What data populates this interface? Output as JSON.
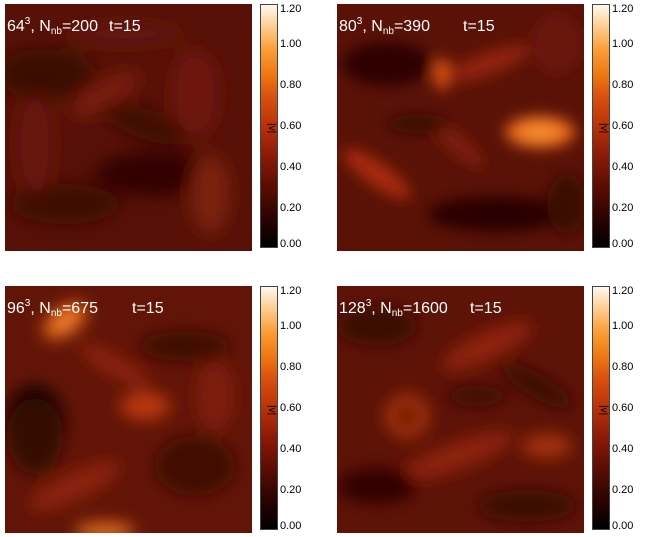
{
  "panels": [
    {
      "res": "64",
      "exp": "3",
      "nb_label": "N",
      "nb_sub": "nb",
      "nb_value": "=200",
      "time": "t=15",
      "tone": "dark"
    },
    {
      "res": "80",
      "exp": "3",
      "nb_label": "N",
      "nb_sub": "nb",
      "nb_value": "=390",
      "time": "t=15",
      "tone": "bright"
    },
    {
      "res": "96",
      "exp": "3",
      "nb_label": "N",
      "nb_sub": "nb",
      "nb_value": "=675",
      "time": "t=15",
      "tone": "mid"
    },
    {
      "res": "128",
      "exp": "3",
      "nb_label": "N",
      "nb_sub": "nb",
      "nb_value": "=1600",
      "time": "t=15",
      "tone": "mid"
    }
  ],
  "colorbar": {
    "ticks": [
      "1.20",
      "1.00",
      "0.80",
      "0.60",
      "0.40",
      "0.20",
      "0.00"
    ],
    "label": "|v|",
    "colors": [
      "#000000",
      "#5a0d04",
      "#b8320a",
      "#f07a14",
      "#fdd29a",
      "#fff8ee"
    ]
  }
}
